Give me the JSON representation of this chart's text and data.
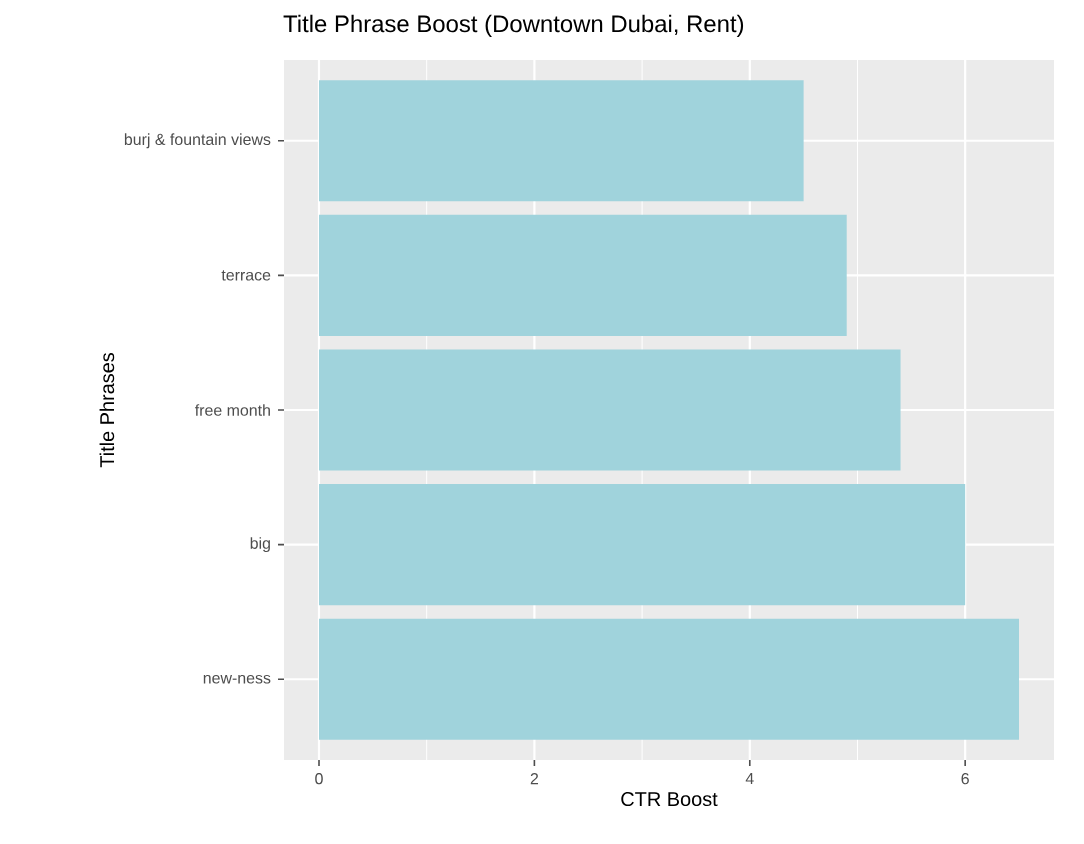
{
  "chart_data": {
    "type": "bar",
    "orientation": "horizontal",
    "title": "Title Phrase Boost (Downtown Dubai, Rent)",
    "xlabel": "CTR Boost",
    "ylabel": "Title Phrases",
    "categories": [
      "burj & fountain views",
      "terrace",
      "free month",
      "big",
      "new-ness"
    ],
    "values": [
      4.5,
      4.9,
      5.4,
      6.0,
      6.5
    ],
    "color": "#a0d3dc",
    "xlim": [
      -0.325,
      6.825
    ],
    "xticks": [
      0,
      2,
      4,
      6
    ],
    "grid": true
  }
}
